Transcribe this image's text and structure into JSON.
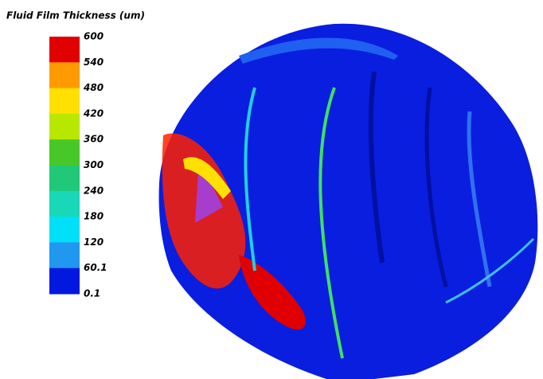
{
  "legend": {
    "title": "Fluid Film Thickness (um)",
    "labels": [
      "600",
      "540",
      "480",
      "420",
      "360",
      "300",
      "240",
      "180",
      "120",
      "60.1",
      "0.1"
    ],
    "colors": [
      "#e00000",
      "#ff9a00",
      "#ffe000",
      "#b8e800",
      "#48c828",
      "#20c878",
      "#18d8b8",
      "#00e0f8",
      "#2098f0",
      "#0018e0"
    ]
  }
}
